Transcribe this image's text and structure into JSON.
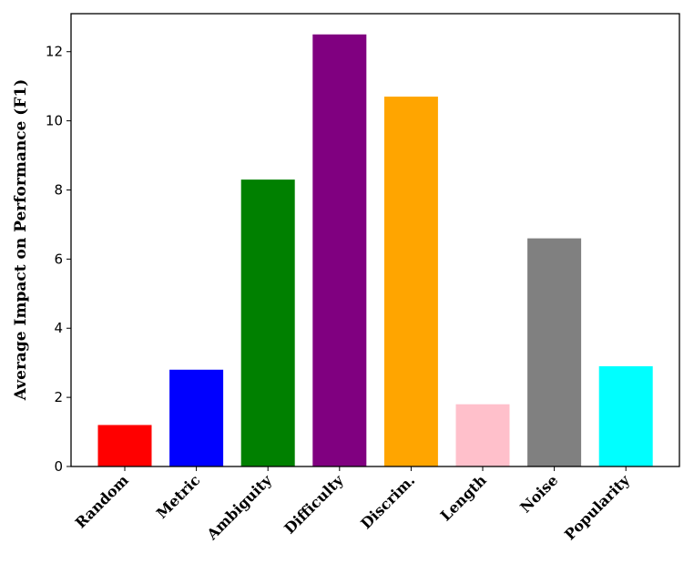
{
  "chart_data": {
    "type": "bar",
    "title": "",
    "xlabel": "",
    "ylabel": "Average Impact on Performance (F1)",
    "categories": [
      "Random",
      "Metric",
      "Ambiguity",
      "Difficulty",
      "Discrim.",
      "Length",
      "Noise",
      "Popularity"
    ],
    "values": [
      1.2,
      2.8,
      8.3,
      12.5,
      10.7,
      1.8,
      6.6,
      2.9
    ],
    "colors": [
      "#ff0000",
      "#0000ff",
      "#008000",
      "#800080",
      "#ffa500",
      "#ffc0cb",
      "#808080",
      "#00ffff"
    ],
    "ylim": [
      0,
      13.1
    ],
    "yticks": [
      0,
      2,
      4,
      6,
      8,
      10,
      12
    ],
    "grid": false,
    "legend": "none"
  }
}
